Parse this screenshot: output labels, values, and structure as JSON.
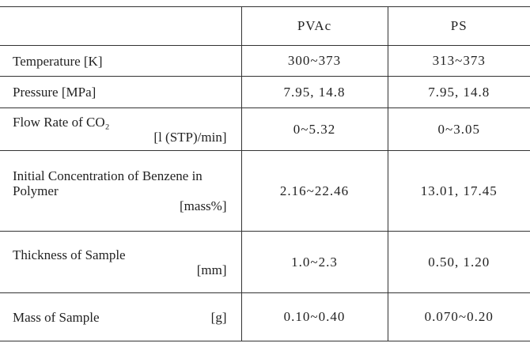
{
  "table": {
    "header": [
      "PVAc",
      "PS"
    ],
    "rows": [
      {
        "label": "Temperature [K]",
        "unit": null,
        "values": [
          "300~373",
          "313~373"
        ]
      },
      {
        "label": "Pressure [MPa]",
        "unit": null,
        "values": [
          "7.95, 14.8",
          "7.95, 14.8"
        ]
      },
      {
        "label": "Flow Rate of CO₂",
        "unit": "[l (STP)/min]",
        "values": [
          "0~5.32",
          "0~3.05"
        ]
      },
      {
        "label": "Initial Concentration of Benzene in Polymer",
        "unit": "[mass%]",
        "values": [
          "2.16~22.46",
          "13.01, 17.45"
        ]
      },
      {
        "label": "Thickness of Sample",
        "unit": "[mm]",
        "values": [
          "1.0~2.3",
          "0.50, 1.20"
        ]
      },
      {
        "label": "Mass of Sample",
        "unit": "[g]",
        "values": [
          "0.10~0.40",
          "0.070~0.20"
        ]
      }
    ]
  }
}
